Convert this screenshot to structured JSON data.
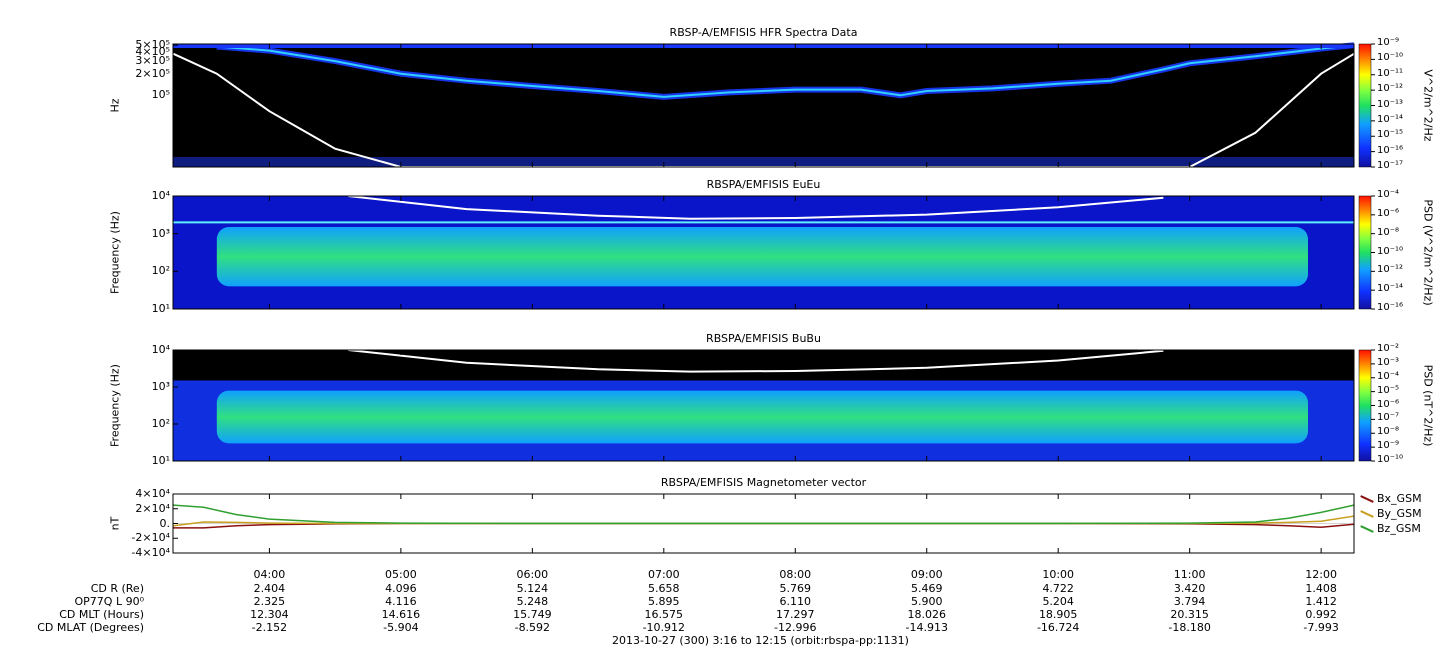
{
  "time": {
    "ticks": [
      "04:00",
      "05:00",
      "06:00",
      "07:00",
      "08:00",
      "09:00",
      "10:00",
      "11:00",
      "12:00"
    ],
    "start_hours": 3.2667,
    "end_hours": 12.25,
    "footer": "2013-10-27 (300) 3:16 to 12:15 (orbit:rbspa-pp:1131)"
  },
  "panels": [
    {
      "title": "RBSP-A/EMFISIS  HFR Spectra Data",
      "ylabel": "Hz",
      "yscale": "log",
      "ylim": [
        10000,
        520000
      ],
      "yticks": [
        {
          "v": 500000,
          "t": "5×10⁵"
        },
        {
          "v": 400000,
          "t": "4×10⁵"
        },
        {
          "v": 300000,
          "t": "3×10⁵"
        },
        {
          "v": 200000,
          "t": "2×10⁵"
        },
        {
          "v": 100000,
          "t": "10⁵"
        }
      ],
      "colorbar": {
        "label": "V^2/m^2/Hz",
        "ticks": [
          "10⁻⁹",
          "10⁻¹⁰",
          "10⁻¹¹",
          "10⁻¹²",
          "10⁻¹³",
          "10⁻¹⁴",
          "10⁻¹⁵",
          "10⁻¹⁶",
          "10⁻¹⁷"
        ]
      },
      "background": "#000000"
    },
    {
      "title": "RBSPA/EMFISIS  EuEu",
      "ylabel": "Frequency (Hz)",
      "yscale": "log",
      "ylim": [
        10,
        10000
      ],
      "yticks": [
        {
          "v": 10000,
          "t": "10⁴"
        },
        {
          "v": 1000,
          "t": "10³"
        },
        {
          "v": 100,
          "t": "10²"
        },
        {
          "v": 10,
          "t": "10¹"
        }
      ],
      "colorbar": {
        "label": "PSD (V^2/m^2/Hz)",
        "ticks": [
          "10⁻⁴",
          "10⁻⁶",
          "10⁻⁸",
          "10⁻¹⁰",
          "10⁻¹²",
          "10⁻¹⁴",
          "10⁻¹⁶"
        ]
      },
      "background": "#0a14c8"
    },
    {
      "title": "RBSPA/EMFISIS  BuBu",
      "ylabel": "Frequency (Hz)",
      "yscale": "log",
      "ylim": [
        10,
        10000
      ],
      "yticks": [
        {
          "v": 10000,
          "t": "10⁴"
        },
        {
          "v": 1000,
          "t": "10³"
        },
        {
          "v": 100,
          "t": "10²"
        },
        {
          "v": 10,
          "t": "10¹"
        }
      ],
      "colorbar": {
        "label": "PSD (nT^2/Hz)",
        "ticks": [
          "10⁻²",
          "10⁻³",
          "10⁻⁴",
          "10⁻⁵",
          "10⁻⁶",
          "10⁻⁷",
          "10⁻⁸",
          "10⁻⁹",
          "10⁻¹⁰"
        ]
      },
      "background": "#000000"
    },
    {
      "title": "RBSPA/EMFISIS  Magnetometer vector",
      "ylabel": "nT",
      "yscale": "linear",
      "ylim": [
        -40000,
        40000
      ],
      "yticks": [
        {
          "v": 40000,
          "t": "4×10⁴"
        },
        {
          "v": 20000,
          "t": "2×10⁴"
        },
        {
          "v": 0,
          "t": "0."
        },
        {
          "v": -20000,
          "t": "-2×10⁴"
        },
        {
          "v": -40000,
          "t": "-4×10⁴"
        }
      ]
    }
  ],
  "chart_data": [
    {
      "type": "heatmap",
      "title": "RBSP-A/EMFISIS  HFR Spectra Data",
      "ylabel": "Hz",
      "note_curve": "white upper-hybrid / cyclotron trace",
      "upper_band_hz": [
        [
          3.6,
          480000
        ],
        [
          4.0,
          420000
        ],
        [
          4.5,
          300000
        ],
        [
          5.0,
          200000
        ],
        [
          5.5,
          160000
        ],
        [
          6.0,
          135000
        ],
        [
          6.5,
          115000
        ],
        [
          7.0,
          95000
        ],
        [
          7.5,
          110000
        ],
        [
          8.0,
          120000
        ],
        [
          8.5,
          120000
        ],
        [
          8.8,
          100000
        ],
        [
          9.0,
          115000
        ],
        [
          9.5,
          125000
        ],
        [
          10.0,
          145000
        ],
        [
          10.4,
          160000
        ],
        [
          10.8,
          230000
        ],
        [
          11.0,
          280000
        ],
        [
          11.5,
          350000
        ],
        [
          12.0,
          450000
        ],
        [
          12.25,
          500000
        ]
      ],
      "white_curve_hz": [
        [
          3.27,
          380000
        ],
        [
          3.6,
          200000
        ],
        [
          4.0,
          60000
        ],
        [
          4.5,
          18000
        ],
        [
          5.0,
          10000
        ],
        [
          11.0,
          10000
        ],
        [
          11.5,
          30000
        ],
        [
          12.0,
          200000
        ],
        [
          12.25,
          380000
        ]
      ]
    },
    {
      "type": "heatmap",
      "title": "RBSPA/EMFISIS  EuEu",
      "ylabel": "Frequency (Hz)",
      "yscale": "log",
      "ylim": [
        10,
        10000
      ],
      "bright_band_hz": [
        40,
        1500
      ],
      "line_hz": 2000,
      "white_curve_hz": [
        [
          4.6,
          10000
        ],
        [
          5.5,
          4500
        ],
        [
          6.5,
          3000
        ],
        [
          7.2,
          2500
        ],
        [
          8.0,
          2600
        ],
        [
          9.0,
          3200
        ],
        [
          10.0,
          5000
        ],
        [
          10.8,
          9000
        ]
      ]
    },
    {
      "type": "heatmap",
      "title": "RBSPA/EMFISIS  BuBu",
      "ylabel": "Frequency (Hz)",
      "yscale": "log",
      "ylim": [
        10,
        10000
      ],
      "bright_band_hz": [
        30,
        800
      ],
      "white_curve_hz": [
        [
          4.6,
          10000
        ],
        [
          5.5,
          4500
        ],
        [
          6.5,
          3000
        ],
        [
          7.2,
          2600
        ],
        [
          8.0,
          2700
        ],
        [
          9.0,
          3300
        ],
        [
          10.0,
          5200
        ],
        [
          10.8,
          9500
        ]
      ]
    },
    {
      "type": "line",
      "title": "RBSPA/EMFISIS  Magnetometer vector",
      "ylabel": "nT",
      "ylim": [
        -40000,
        40000
      ],
      "x_hours": [
        3.27,
        3.5,
        3.75,
        4.0,
        4.5,
        5.0,
        6.0,
        7.0,
        8.0,
        9.0,
        10.0,
        11.0,
        11.5,
        11.75,
        12.0,
        12.25
      ],
      "series": [
        {
          "name": "Bx_GSM",
          "color": "#8b1010",
          "values": [
            -6000,
            -6000,
            -3000,
            -1500,
            -500,
            0,
            0,
            0,
            0,
            0,
            0,
            -500,
            -1500,
            -3000,
            -5000,
            -1000
          ]
        },
        {
          "name": "By_GSM",
          "color": "#c8a020",
          "values": [
            -3000,
            2000,
            1500,
            500,
            0,
            0,
            0,
            0,
            0,
            0,
            0,
            0,
            500,
            1500,
            3000,
            10000
          ]
        },
        {
          "name": "Bz_GSM",
          "color": "#30a030",
          "values": [
            25000,
            22000,
            12000,
            6000,
            1500,
            500,
            200,
            100,
            100,
            100,
            200,
            500,
            2000,
            7000,
            15000,
            25000
          ]
        }
      ]
    }
  ],
  "ephemeris": {
    "rows": [
      {
        "label": "CD R (Re)",
        "values": [
          "2.404",
          "4.096",
          "5.124",
          "5.658",
          "5.769",
          "5.469",
          "4.722",
          "3.420",
          "1.408"
        ]
      },
      {
        "label": "OP77Q L 90⁰",
        "values": [
          "2.325",
          "4.116",
          "5.248",
          "5.895",
          "6.110",
          "5.900",
          "5.204",
          "3.794",
          "1.412"
        ]
      },
      {
        "label": "CD MLT (Hours)",
        "values": [
          "12.304",
          "14.616",
          "15.749",
          "16.575",
          "17.297",
          "18.026",
          "18.905",
          "20.315",
          "0.992"
        ]
      },
      {
        "label": "CD MLAT (Degrees)",
        "values": [
          "-2.152",
          "-5.904",
          "-8.592",
          "-10.912",
          "-12.996",
          "-14.913",
          "-16.724",
          "-18.180",
          "-7.993"
        ]
      }
    ]
  }
}
